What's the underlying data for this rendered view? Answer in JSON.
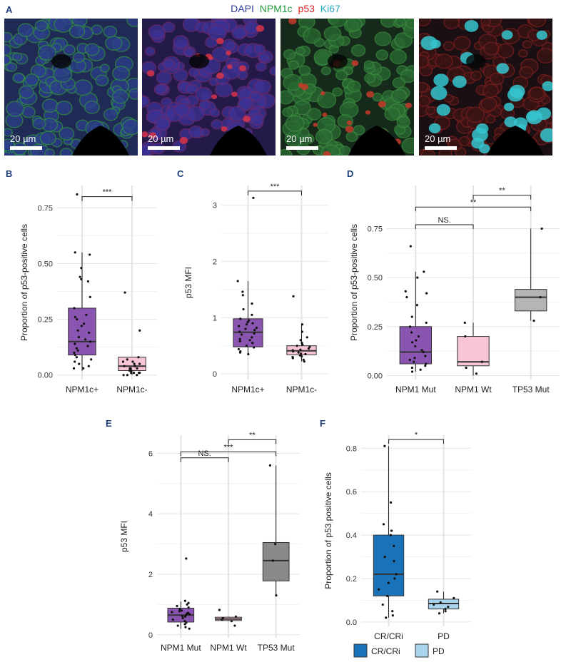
{
  "figure": {
    "legend": [
      {
        "label": "DAPI",
        "color": "#2b3a9e"
      },
      {
        "label": "NPM1c",
        "color": "#1f9a3a"
      },
      {
        "label": "p53",
        "color": "#e02020"
      },
      {
        "label": "Ki67",
        "color": "#2aa7c4"
      }
    ],
    "panel_a": {
      "letter": "A",
      "scale_label": "20 µm"
    },
    "micro_tints": [
      "#2a3a6a",
      "#3a2a6a",
      "#2a4a2a",
      "#3a1a1a"
    ]
  },
  "chart_data": [
    {
      "panel": "B",
      "type": "box",
      "ylabel": "Proportion of p53-positive cells",
      "ylim": [
        -0.02,
        0.85
      ],
      "yticks": [
        0.0,
        0.25,
        0.5,
        0.75
      ],
      "ytick_labels": [
        "0.00",
        "0.25",
        "0.50",
        "0.75"
      ],
      "categories": [
        "NPM1c+",
        "NPM1c-"
      ],
      "colors": [
        "#8a55b0",
        "#f7c5d3"
      ],
      "boxes": [
        {
          "q1": 0.09,
          "median": 0.15,
          "q3": 0.3,
          "whisker_low": 0.02,
          "whisker_high": 0.55
        },
        {
          "q1": 0.02,
          "median": 0.04,
          "q3": 0.08,
          "whisker_low": 0.0,
          "whisker_high": 0.08
        }
      ],
      "points": [
        [
          0.81,
          0.55,
          0.54,
          0.48,
          0.44,
          0.43,
          0.42,
          0.35,
          0.3,
          0.27,
          0.26,
          0.25,
          0.23,
          0.22,
          0.2,
          0.19,
          0.17,
          0.16,
          0.15,
          0.14,
          0.13,
          0.12,
          0.11,
          0.1,
          0.09,
          0.08,
          0.07,
          0.06,
          0.05,
          0.04,
          0.03,
          0.03
        ],
        [
          0.37,
          0.2,
          0.08,
          0.07,
          0.06,
          0.06,
          0.05,
          0.05,
          0.04,
          0.04,
          0.03,
          0.03,
          0.03,
          0.02,
          0.02,
          0.02,
          0.01,
          0.01,
          0.01,
          0.01,
          0.0,
          0.0,
          0.0
        ]
      ],
      "brackets": [
        {
          "from": 0,
          "to": 1,
          "label": "***",
          "y": 0.8
        }
      ]
    },
    {
      "panel": "C",
      "type": "box",
      "ylabel": "p53 MFI",
      "ylim": [
        -0.1,
        3.35
      ],
      "yticks": [
        0,
        1,
        2,
        3
      ],
      "ytick_labels": [
        "0",
        "1",
        "2",
        "3"
      ],
      "categories": [
        "NPM1c+",
        "NPM1c-"
      ],
      "colors": [
        "#8a55b0",
        "#f7c5d3"
      ],
      "boxes": [
        {
          "q1": 0.48,
          "median": 0.74,
          "q3": 0.98,
          "whisker_low": 0.35,
          "whisker_high": 1.65
        },
        {
          "q1": 0.34,
          "median": 0.41,
          "q3": 0.5,
          "whisker_low": 0.22,
          "whisker_high": 0.88
        }
      ],
      "points": [
        [
          3.13,
          1.65,
          1.46,
          1.4,
          1.25,
          1.15,
          1.05,
          0.98,
          0.95,
          0.92,
          0.9,
          0.88,
          0.85,
          0.82,
          0.8,
          0.78,
          0.75,
          0.72,
          0.7,
          0.65,
          0.62,
          0.6,
          0.58,
          0.55,
          0.5,
          0.47,
          0.44,
          0.4,
          0.38,
          0.35
        ],
        [
          1.38,
          0.88,
          0.75,
          0.65,
          0.6,
          0.55,
          0.52,
          0.5,
          0.48,
          0.45,
          0.43,
          0.42,
          0.4,
          0.38,
          0.36,
          0.35,
          0.33,
          0.31,
          0.3,
          0.28,
          0.25,
          0.22
        ]
      ],
      "brackets": [
        {
          "from": 0,
          "to": 1,
          "label": "***",
          "y": 3.25
        }
      ]
    },
    {
      "panel": "D",
      "type": "box",
      "ylabel": "Proportion of p53-positive cells",
      "ylim": [
        -0.02,
        0.97
      ],
      "yticks": [
        0.0,
        0.25,
        0.5,
        0.75
      ],
      "ytick_labels": [
        "0.00",
        "0.25",
        "0.50",
        "0.75"
      ],
      "categories": [
        "NPM1 Mut",
        "NPM1 Wt",
        "TP53 Mut"
      ],
      "colors": [
        "#8a55b0",
        "#f7c5d3",
        "#b5b5b5"
      ],
      "boxes": [
        {
          "q1": 0.06,
          "median": 0.12,
          "q3": 0.25,
          "whisker_low": 0.02,
          "whisker_high": 0.53
        },
        {
          "q1": 0.05,
          "median": 0.07,
          "q3": 0.2,
          "whisker_low": 0.0,
          "whisker_high": 0.27
        },
        {
          "q1": 0.33,
          "median": 0.4,
          "q3": 0.44,
          "whisker_low": 0.28,
          "whisker_high": 0.75
        }
      ],
      "points": [
        [
          0.66,
          0.53,
          0.5,
          0.43,
          0.42,
          0.4,
          0.36,
          0.3,
          0.27,
          0.25,
          0.22,
          0.2,
          0.18,
          0.17,
          0.15,
          0.13,
          0.12,
          0.1,
          0.09,
          0.08,
          0.07,
          0.06,
          0.05,
          0.04,
          0.03,
          0.02
        ],
        [
          0.27,
          0.2,
          0.07,
          0.04,
          0.01
        ],
        [
          0.75,
          0.4,
          0.28
        ]
      ],
      "brackets": [
        {
          "from": 1,
          "to": 2,
          "label": "**",
          "y": 0.92
        },
        {
          "from": 0,
          "to": 2,
          "label": "**",
          "y": 0.86
        },
        {
          "from": 0,
          "to": 1,
          "label": "NS.",
          "y": 0.77
        }
      ]
    },
    {
      "panel": "E",
      "type": "box",
      "ylabel": "p53 MFI",
      "ylim": [
        -0.1,
        6.6
      ],
      "yticks": [
        0,
        2,
        4,
        6
      ],
      "ytick_labels": [
        "0",
        "2",
        "4",
        "6"
      ],
      "categories": [
        "NPM1 Mut",
        "NPM1 Wt",
        "TP53 Mut"
      ],
      "colors": [
        "#8a55b0",
        "#f7c5d3",
        "#8a8a8a"
      ],
      "boxes": [
        {
          "q1": 0.42,
          "median": 0.65,
          "q3": 0.88,
          "whisker_low": 0.2,
          "whisker_high": 1.1
        },
        {
          "q1": 0.47,
          "median": 0.52,
          "q3": 0.58,
          "whisker_low": 0.45,
          "whisker_high": 0.6
        },
        {
          "q1": 1.78,
          "median": 2.45,
          "q3": 3.05,
          "whisker_low": 1.3,
          "whisker_high": 5.6
        }
      ],
      "points": [
        [
          2.52,
          1.12,
          1.05,
          1.0,
          0.95,
          0.9,
          0.85,
          0.8,
          0.78,
          0.75,
          0.72,
          0.7,
          0.68,
          0.65,
          0.62,
          0.6,
          0.55,
          0.5,
          0.45,
          0.4,
          0.35,
          0.3,
          0.25,
          0.2
        ],
        [
          0.82,
          0.6,
          0.55,
          0.5,
          0.45,
          0.3
        ],
        [
          5.6,
          3.0,
          2.45,
          1.3
        ]
      ],
      "brackets": [
        {
          "from": 1,
          "to": 2,
          "label": "**",
          "y": 6.45
        },
        {
          "from": 0,
          "to": 2,
          "label": "***",
          "y": 6.05
        },
        {
          "from": 0,
          "to": 1,
          "label": "NS.",
          "y": 5.85
        }
      ]
    },
    {
      "panel": "F",
      "type": "box",
      "ylabel": "Proportion of p53 positive cells",
      "ylim": [
        -0.02,
        0.86
      ],
      "yticks": [
        0.0,
        0.2,
        0.4,
        0.6,
        0.8
      ],
      "ytick_labels": [
        "0.0",
        "0.2",
        "0.4",
        "0.6",
        "0.8"
      ],
      "categories": [
        "CR/CRi",
        "PD"
      ],
      "colors": [
        "#1a72b8",
        "#a9d4ee"
      ],
      "legend": [
        "CR/CRi",
        "PD"
      ],
      "boxes": [
        {
          "q1": 0.12,
          "median": 0.22,
          "q3": 0.4,
          "whisker_low": 0.02,
          "whisker_high": 0.81
        },
        {
          "q1": 0.06,
          "median": 0.085,
          "q3": 0.105,
          "whisker_low": 0.04,
          "whisker_high": 0.14
        }
      ],
      "points": [
        [
          0.81,
          0.55,
          0.45,
          0.42,
          0.4,
          0.35,
          0.3,
          0.28,
          0.22,
          0.2,
          0.18,
          0.15,
          0.12,
          0.08,
          0.05,
          0.03,
          0.02
        ],
        [
          0.14,
          0.11,
          0.09,
          0.08,
          0.07,
          0.06,
          0.05,
          0.04
        ]
      ],
      "brackets": [
        {
          "from": 0,
          "to": 1,
          "label": "*",
          "y": 0.84
        }
      ]
    }
  ]
}
